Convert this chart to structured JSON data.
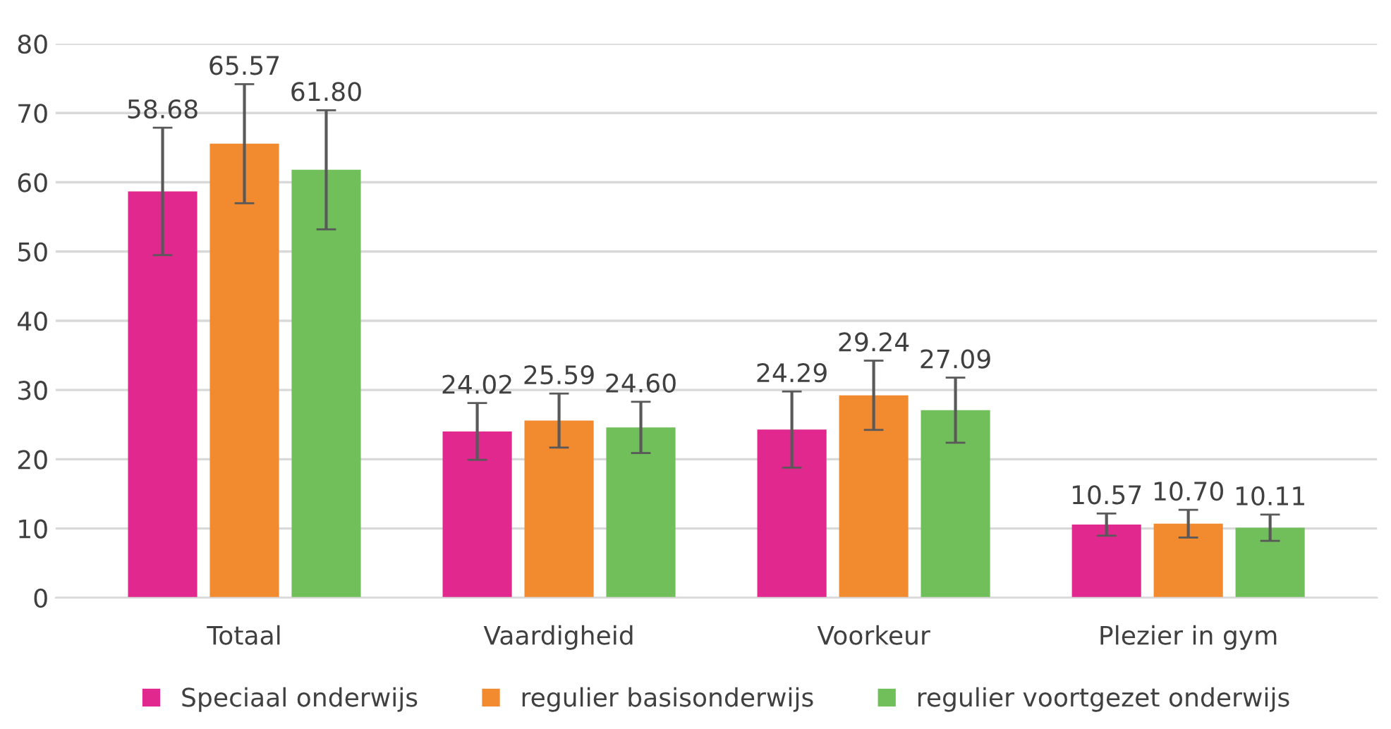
{
  "chart_data": {
    "type": "bar",
    "categories": [
      "Totaal",
      "Vaardigheid",
      "Voorkeur",
      "Plezier in gym"
    ],
    "series": [
      {
        "name": "Speciaal onderwijs",
        "color": "#e0288e",
        "values": [
          58.68,
          24.02,
          24.29,
          10.57
        ],
        "value_labels": [
          "58.68",
          "24.02",
          "24.29",
          "10.57"
        ],
        "errors": [
          9.2,
          4.1,
          5.5,
          1.6
        ]
      },
      {
        "name": "regulier basisonderwijs",
        "color": "#f28a30",
        "values": [
          65.57,
          25.59,
          29.24,
          10.7
        ],
        "value_labels": [
          "65.57",
          "25.59",
          "29.24",
          "10.70"
        ],
        "errors": [
          8.6,
          3.9,
          5.0,
          2.0
        ]
      },
      {
        "name": "regulier voortgezet onderwijs",
        "color": "#70bf5a",
        "values": [
          61.8,
          24.6,
          27.09,
          10.11
        ],
        "value_labels": [
          "61.80",
          "24.60",
          "27.09",
          "10.11"
        ],
        "errors": [
          8.6,
          3.7,
          4.7,
          1.9
        ]
      }
    ],
    "ylim": [
      0,
      80
    ],
    "yticks": [
      0,
      10,
      20,
      30,
      40,
      50,
      60,
      70,
      80
    ],
    "grid": "y",
    "legend": "bottom"
  }
}
